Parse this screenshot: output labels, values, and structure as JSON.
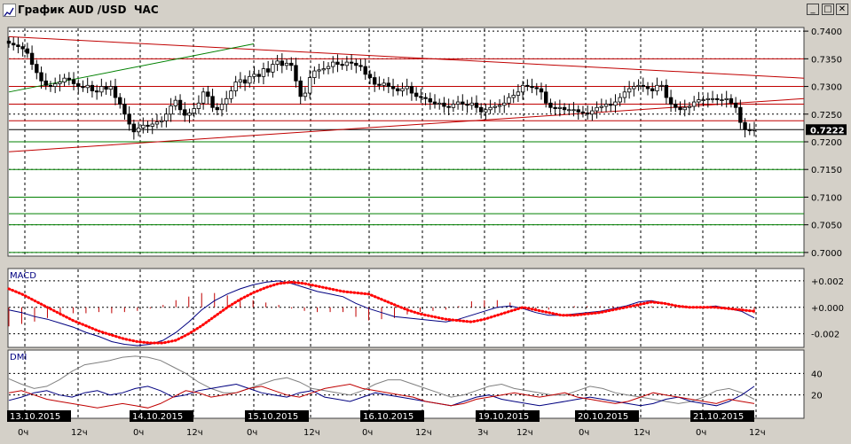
{
  "window": {
    "title": "График AUD /USD  ЧАС",
    "buttons": {
      "minimize": "_",
      "maximize": "□",
      "close": "✕"
    }
  },
  "chart_data": [
    {
      "type": "candlestick",
      "panel": "price",
      "yticks": [
        "0.7400",
        "0.7350",
        "0.7300",
        "0.7250",
        "0.7200",
        "0.7150",
        "0.7100",
        "0.7050",
        "0.7000"
      ],
      "last_price_label": "0.7222",
      "ylim": [
        0.6995,
        0.7405
      ],
      "colors": {
        "bull": "#ffffff",
        "bear": "#000000",
        "trend_red": "#c00000",
        "trend_green": "#008000",
        "level_green": "#008000"
      },
      "series_close": [
        0.7378,
        0.7375,
        0.7372,
        0.7368,
        0.736,
        0.734,
        0.7325,
        0.731,
        0.7302,
        0.73,
        0.7305,
        0.7308,
        0.7315,
        0.7312,
        0.7305,
        0.73,
        0.7298,
        0.7302,
        0.7292,
        0.729,
        0.73,
        0.7295,
        0.73,
        0.728,
        0.7268,
        0.725,
        0.7232,
        0.7218,
        0.7225,
        0.723,
        0.7228,
        0.7232,
        0.7236,
        0.7238,
        0.725,
        0.7265,
        0.7275,
        0.7258,
        0.7248,
        0.7252,
        0.726,
        0.727,
        0.729,
        0.7282,
        0.7262,
        0.7258,
        0.7268,
        0.7278,
        0.7292,
        0.7308,
        0.7312,
        0.7306,
        0.7318,
        0.7322,
        0.7318,
        0.7332,
        0.7326,
        0.734,
        0.7346,
        0.7338,
        0.7342,
        0.7338,
        0.731,
        0.7282,
        0.7288,
        0.7316,
        0.7328,
        0.733,
        0.7332,
        0.7336,
        0.7344,
        0.734,
        0.7338,
        0.7344,
        0.7342,
        0.7338,
        0.7336,
        0.7322,
        0.7316,
        0.7304,
        0.7302,
        0.7306,
        0.73,
        0.7296,
        0.7292,
        0.7296,
        0.73,
        0.7288,
        0.7282,
        0.728,
        0.7278,
        0.7272,
        0.7268,
        0.727,
        0.7264,
        0.7262,
        0.7268,
        0.7272,
        0.7268,
        0.7266,
        0.727,
        0.7262,
        0.7254,
        0.7258,
        0.7262,
        0.7264,
        0.7266,
        0.727,
        0.728,
        0.7284,
        0.729,
        0.7302,
        0.73,
        0.7298,
        0.7296,
        0.729,
        0.727,
        0.7262,
        0.726,
        0.7262,
        0.7258,
        0.7258,
        0.7258,
        0.7254,
        0.7252,
        0.725,
        0.7256,
        0.7262,
        0.7264,
        0.7268,
        0.7266,
        0.7272,
        0.728,
        0.729,
        0.7296,
        0.73,
        0.7302,
        0.73,
        0.7296,
        0.7292,
        0.7302,
        0.7302,
        0.728,
        0.7268,
        0.7262,
        0.7258,
        0.7262,
        0.7264,
        0.7272,
        0.7276,
        0.7276,
        0.7278,
        0.7278,
        0.7276,
        0.7276,
        0.7278,
        0.727,
        0.7262,
        0.7235,
        0.7222,
        0.722,
        0.7222
      ],
      "date_labels": [
        "13.10.2015",
        "14.10.2015",
        "15.10.2015",
        "16.10.2015",
        "19.10.2015",
        "20.10.2015",
        "21.10.2015"
      ],
      "hour_labels": [
        "0ч",
        "12ч",
        "0ч",
        "12ч",
        "0ч",
        "12ч",
        "0ч",
        "12ч",
        "3ч",
        "12ч",
        "0ч",
        "12ч",
        "0ч",
        "12ч"
      ]
    },
    {
      "type": "line",
      "panel": "indicator",
      "title": "MACD",
      "yticks": [
        "+0.002",
        "+0.000",
        "-0.002"
      ],
      "ylim": [
        -0.0029,
        0.0028
      ],
      "series": [
        {
          "style": "solid",
          "color": "#000080",
          "values": [
            -0.0002,
            -0.0004,
            -0.0007,
            -0.0009,
            -0.0012,
            -0.0015,
            -0.0019,
            -0.0022,
            -0.0026,
            -0.0028,
            -0.0029,
            -0.0028,
            -0.0025,
            -0.0019,
            -0.0011,
            -0.0002,
            0.0005,
            0.001,
            0.0014,
            0.0017,
            0.0019,
            0.002,
            0.0018,
            0.0015,
            0.0012,
            0.001,
            0.0008,
            0.0003,
            -0.0001,
            -0.0004,
            -0.0007,
            -0.0008,
            -0.0009,
            -0.001,
            -0.0011,
            -0.0009,
            -0.0006,
            -0.0003,
            0.0,
            0.0001,
            -0.0001,
            -0.0004,
            -0.0006,
            -0.0006,
            -0.0005,
            -0.0004,
            -0.0003,
            -0.0001,
            0.0001,
            0.0004,
            0.0005,
            0.0003,
            0.0001,
            0.0,
            0.0,
            0.0001,
            -0.0001,
            -0.0003,
            -0.0008
          ]
        },
        {
          "style": "dotted",
          "color": "#ff0000",
          "values": [
            0.0014,
            0.001,
            0.0005,
            0.0,
            -0.0005,
            -0.001,
            -0.0014,
            -0.0018,
            -0.0021,
            -0.0024,
            -0.0026,
            -0.0027,
            -0.0027,
            -0.0025,
            -0.002,
            -0.0014,
            -0.0007,
            0.0,
            0.0006,
            0.0011,
            0.0015,
            0.0018,
            0.0019,
            0.0018,
            0.0016,
            0.0014,
            0.0012,
            0.0011,
            0.001,
            0.0006,
            0.0002,
            -0.0002,
            -0.0005,
            -0.0007,
            -0.0009,
            -0.001,
            -0.0011,
            -0.0009,
            -0.0006,
            -0.0003,
            0.0,
            -0.0002,
            -0.0004,
            -0.0006,
            -0.0006,
            -0.0005,
            -0.0004,
            -0.0002,
            0.0,
            0.0002,
            0.0004,
            0.0003,
            0.0001,
            0.0,
            0.0,
            0.0,
            -0.0001,
            -0.0002,
            -0.0003
          ]
        }
      ]
    },
    {
      "type": "line",
      "panel": "indicator",
      "title": "DMI",
      "yticks": [
        "40",
        "20"
      ],
      "ylim": [
        0,
        60
      ],
      "series": [
        {
          "color": "#808080",
          "values": [
            35,
            30,
            26,
            28,
            34,
            42,
            48,
            50,
            52,
            55,
            56,
            55,
            52,
            46,
            40,
            32,
            26,
            22,
            22,
            26,
            30,
            34,
            36,
            32,
            26,
            24,
            22,
            20,
            24,
            30,
            34,
            34,
            30,
            26,
            22,
            18,
            20,
            24,
            28,
            30,
            26,
            24,
            22,
            20,
            20,
            24,
            28,
            26,
            22,
            20,
            18,
            16,
            14,
            12,
            14,
            18,
            24,
            26,
            22,
            16
          ]
        },
        {
          "color": "#000080",
          "values": [
            15,
            18,
            22,
            24,
            20,
            18,
            22,
            24,
            20,
            22,
            26,
            28,
            24,
            18,
            20,
            24,
            26,
            28,
            30,
            26,
            22,
            20,
            18,
            22,
            24,
            18,
            16,
            14,
            18,
            22,
            20,
            18,
            16,
            14,
            12,
            10,
            14,
            18,
            20,
            16,
            14,
            12,
            10,
            12,
            14,
            16,
            18,
            16,
            14,
            12,
            10,
            12,
            16,
            18,
            14,
            12,
            10,
            14,
            20,
            28
          ]
        },
        {
          "color": "#c00000",
          "values": [
            22,
            24,
            20,
            16,
            14,
            12,
            10,
            8,
            10,
            12,
            10,
            8,
            12,
            18,
            24,
            22,
            18,
            20,
            22,
            26,
            28,
            24,
            20,
            18,
            22,
            26,
            28,
            30,
            26,
            24,
            22,
            20,
            18,
            14,
            12,
            10,
            12,
            16,
            18,
            20,
            22,
            20,
            18,
            20,
            22,
            18,
            16,
            14,
            12,
            14,
            18,
            22,
            20,
            18,
            16,
            14,
            12,
            16,
            14,
            12
          ]
        }
      ]
    }
  ]
}
